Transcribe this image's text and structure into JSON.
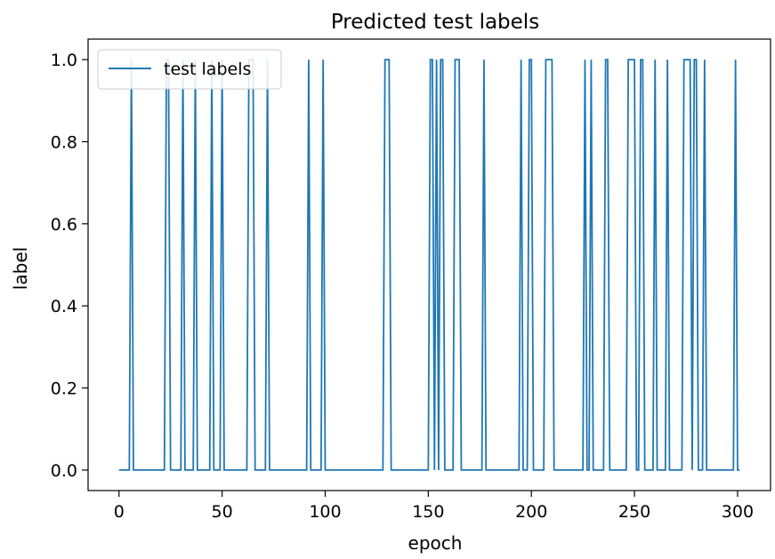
{
  "chart_data": {
    "type": "line",
    "title": "Predicted test labels",
    "xlabel": "epoch",
    "ylabel": "label",
    "xlim": [
      -15,
      316
    ],
    "ylim": [
      -0.05,
      1.05
    ],
    "xticks": [
      0,
      50,
      100,
      150,
      200,
      250,
      300
    ],
    "yticks": [
      0.0,
      0.2,
      0.4,
      0.6,
      0.8,
      1.0
    ],
    "xtick_labels": [
      "0",
      "50",
      "100",
      "150",
      "200",
      "250",
      "300"
    ],
    "ytick_labels": [
      "0.0",
      "0.2",
      "0.4",
      "0.6",
      "0.8",
      "1.0"
    ],
    "grid": false,
    "legend_position": "top-left",
    "series": [
      {
        "name": "test labels",
        "color": "#1f77b4",
        "x_start": 0,
        "x_end": 301,
        "baseline": 0,
        "positive_x": [
          6,
          23,
          24,
          31,
          37,
          45,
          50,
          63,
          64,
          65,
          72,
          92,
          99,
          129,
          130,
          131,
          151,
          152,
          154,
          156,
          157,
          163,
          164,
          165,
          177,
          195,
          199,
          200,
          207,
          208,
          209,
          210,
          226,
          229,
          236,
          237,
          247,
          248,
          249,
          250,
          253,
          254,
          260,
          266,
          274,
          275,
          276,
          277,
          279,
          280,
          284,
          299
        ]
      }
    ]
  }
}
